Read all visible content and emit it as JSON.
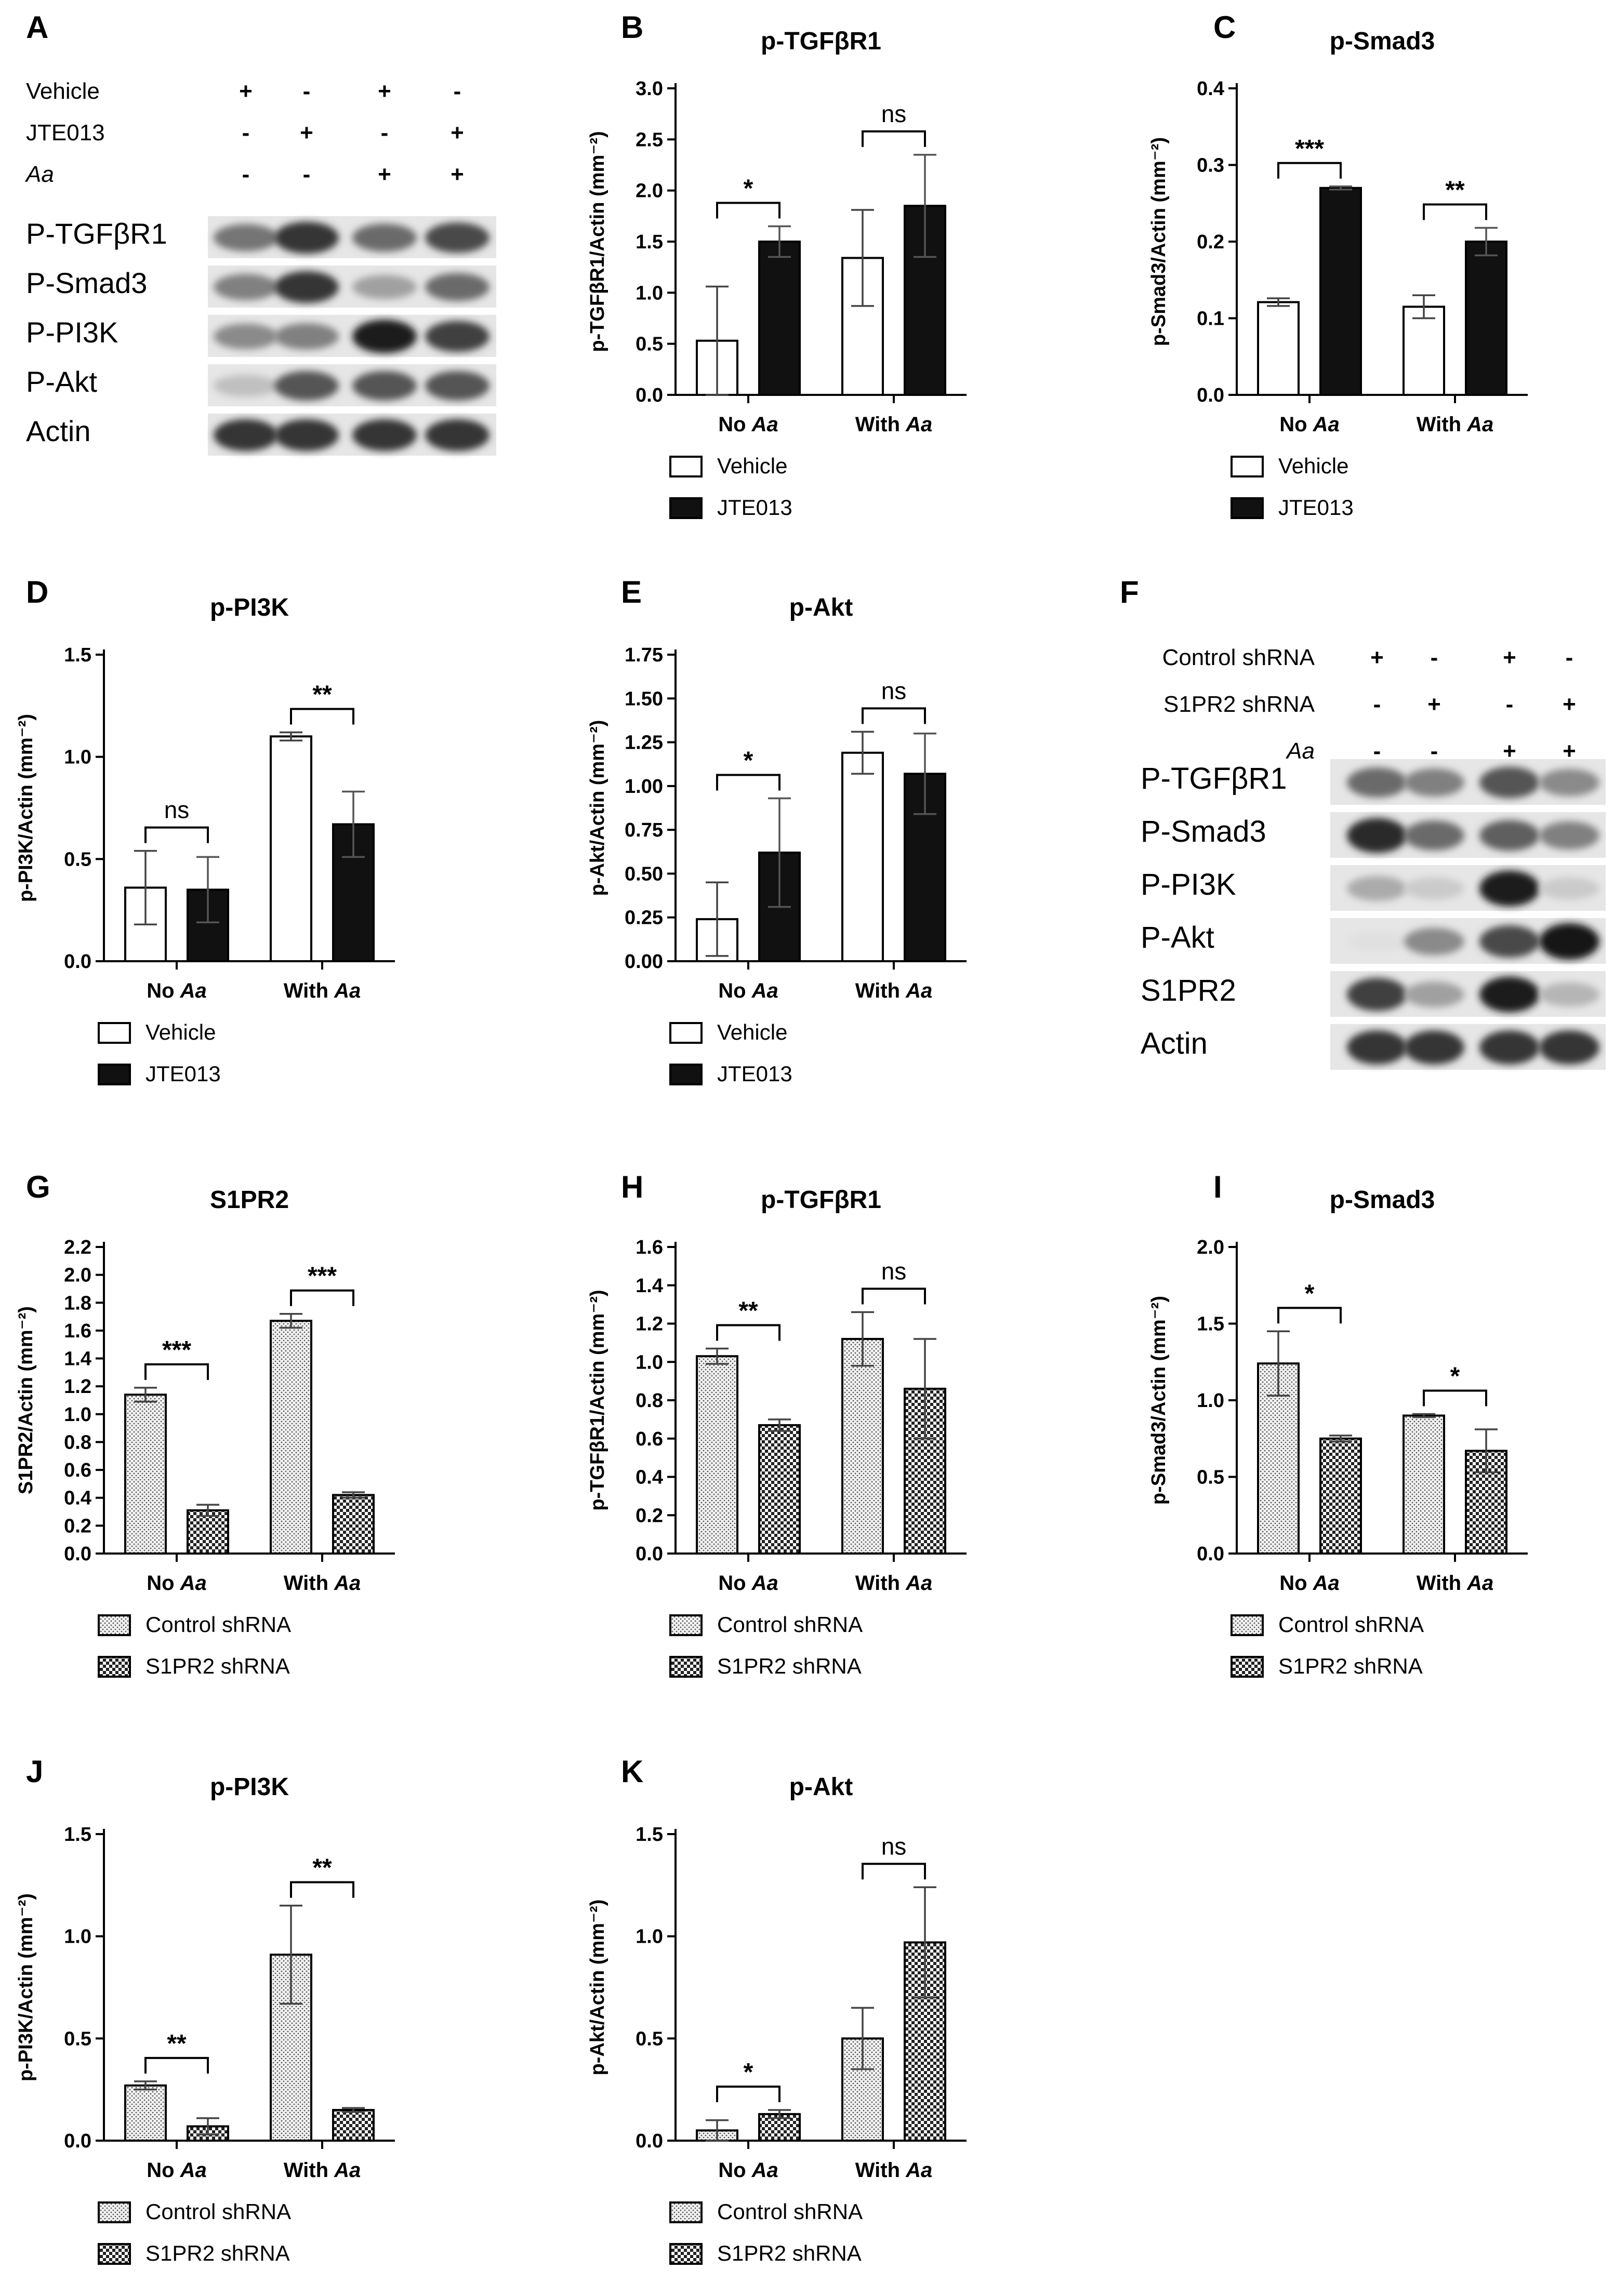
{
  "panel_letters": [
    "A",
    "B",
    "C",
    "D",
    "E",
    "F",
    "G",
    "H",
    "I",
    "J",
    "K"
  ],
  "blot_a": {
    "conditions": [
      {
        "label": "Vehicle",
        "italic": false,
        "signs": [
          "+",
          "-",
          "+",
          "-"
        ]
      },
      {
        "label": "JTE013",
        "italic": false,
        "signs": [
          "-",
          "+",
          "-",
          "+"
        ]
      },
      {
        "label": "Aa",
        "italic": true,
        "signs": [
          "-",
          "-",
          "+",
          "+"
        ]
      }
    ],
    "bands": [
      {
        "label": "P-TGFβR1",
        "intensity": [
          0.55,
          0.85,
          0.6,
          0.75
        ]
      },
      {
        "label": "P-Smad3",
        "intensity": [
          0.5,
          0.85,
          0.35,
          0.6
        ]
      },
      {
        "label": "P-PI3K",
        "intensity": [
          0.45,
          0.5,
          0.95,
          0.8
        ]
      },
      {
        "label": "P-Akt",
        "intensity": [
          0.2,
          0.7,
          0.7,
          0.7
        ]
      },
      {
        "label": "Actin",
        "intensity": [
          0.85,
          0.85,
          0.85,
          0.85
        ]
      }
    ]
  },
  "blot_f": {
    "conditions": [
      {
        "label": "Control shRNA",
        "italic": false,
        "signs": [
          "+",
          "-",
          "+",
          "-"
        ]
      },
      {
        "label": "S1PR2 shRNA",
        "italic": false,
        "signs": [
          "-",
          "+",
          "-",
          "+"
        ]
      },
      {
        "label": "Aa",
        "italic": true,
        "signs": [
          "-",
          "-",
          "+",
          "+"
        ]
      }
    ],
    "bands": [
      {
        "label": "P-TGFβR1",
        "intensity": [
          0.6,
          0.5,
          0.7,
          0.45
        ]
      },
      {
        "label": "P-Smad3",
        "intensity": [
          0.9,
          0.6,
          0.65,
          0.5
        ]
      },
      {
        "label": "P-PI3K",
        "intensity": [
          0.3,
          0.15,
          0.95,
          0.15
        ]
      },
      {
        "label": "P-Akt",
        "intensity": [
          0.05,
          0.45,
          0.75,
          1.0
        ]
      },
      {
        "label": "S1PR2",
        "intensity": [
          0.8,
          0.35,
          0.95,
          0.25
        ]
      },
      {
        "label": "Actin",
        "intensity": [
          0.85,
          0.85,
          0.85,
          0.85
        ]
      }
    ]
  },
  "chart_data": [
    {
      "id": "B",
      "type": "bar",
      "title": "p-TGFβR1",
      "ylabel": "p-TGFβR1/Actin (mm⁻²)",
      "ylim": [
        0,
        3.0
      ],
      "yticks": [
        "0.0",
        "0.5",
        "1.0",
        "1.5",
        "2.0",
        "2.5",
        "3.0"
      ],
      "categories": [
        "No Aa",
        "With Aa"
      ],
      "series": [
        {
          "name": "Vehicle",
          "values": [
            0.53,
            1.34
          ],
          "errors": [
            0.53,
            0.47
          ]
        },
        {
          "name": "JTE013",
          "values": [
            1.5,
            1.85
          ],
          "errors": [
            0.15,
            0.5
          ]
        }
      ],
      "significance": [
        "*",
        "ns"
      ],
      "fill": "plain"
    },
    {
      "id": "C",
      "type": "bar",
      "title": "p-Smad3",
      "ylabel": "p-Smad3/Actin (mm⁻²)",
      "ylim": [
        0,
        0.4
      ],
      "yticks": [
        "0.0",
        "0.1",
        "0.2",
        "0.3",
        "0.4"
      ],
      "categories": [
        "No Aa",
        "With Aa"
      ],
      "series": [
        {
          "name": "Vehicle",
          "values": [
            0.121,
            0.115
          ],
          "errors": [
            0.005,
            0.015
          ]
        },
        {
          "name": "JTE013",
          "values": [
            0.27,
            0.2
          ],
          "errors": [
            0.002,
            0.018
          ]
        }
      ],
      "significance": [
        "***",
        "**"
      ],
      "fill": "plain"
    },
    {
      "id": "D",
      "type": "bar",
      "title": "p-PI3K",
      "ylabel": "p-PI3K/Actin (mm⁻²)",
      "ylim": [
        0,
        1.5
      ],
      "yticks": [
        "0.0",
        "0.5",
        "1.0",
        "1.5"
      ],
      "categories": [
        "No Aa",
        "With Aa"
      ],
      "series": [
        {
          "name": "Vehicle",
          "values": [
            0.36,
            1.1
          ],
          "errors": [
            0.18,
            0.02
          ]
        },
        {
          "name": "JTE013",
          "values": [
            0.35,
            0.67
          ],
          "errors": [
            0.16,
            0.16
          ]
        }
      ],
      "significance": [
        "ns",
        "**"
      ],
      "fill": "plain"
    },
    {
      "id": "E",
      "type": "bar",
      "title": "p-Akt",
      "ylabel": "p-Akt/Actin (mm⁻²)",
      "ylim": [
        0,
        1.75
      ],
      "yticks": [
        "0.00",
        "0.25",
        "0.50",
        "0.75",
        "1.00",
        "1.25",
        "1.50",
        "1.75"
      ],
      "categories": [
        "No Aa",
        "With Aa"
      ],
      "series": [
        {
          "name": "Vehicle",
          "values": [
            0.24,
            1.19
          ],
          "errors": [
            0.21,
            0.12
          ]
        },
        {
          "name": "JTE013",
          "values": [
            0.62,
            1.07
          ],
          "errors": [
            0.31,
            0.23
          ]
        }
      ],
      "significance": [
        "*",
        "ns"
      ],
      "fill": "plain"
    },
    {
      "id": "G",
      "type": "bar",
      "title": "S1PR2",
      "ylabel": "S1PR2/Actin (mm⁻²)",
      "ylim": [
        0,
        2.2
      ],
      "yticks": [
        "0.0",
        "0.2",
        "0.4",
        "0.6",
        "0.8",
        "1.0",
        "1.2",
        "1.4",
        "1.6",
        "1.8",
        "2.0",
        "2.2"
      ],
      "categories": [
        "No Aa",
        "With Aa"
      ],
      "series": [
        {
          "name": "Control shRNA",
          "values": [
            1.14,
            1.67
          ],
          "errors": [
            0.05,
            0.05
          ]
        },
        {
          "name": "S1PR2 shRNA",
          "values": [
            0.31,
            0.42
          ],
          "errors": [
            0.04,
            0.02
          ]
        }
      ],
      "significance": [
        "***",
        "***"
      ],
      "fill": "pattern"
    },
    {
      "id": "H",
      "type": "bar",
      "title": "p-TGFβR1",
      "ylabel": "p-TGFβR1/Actin (mm⁻²)",
      "ylim": [
        0,
        1.6
      ],
      "yticks": [
        "0.0",
        "0.2",
        "0.4",
        "0.6",
        "0.8",
        "1.0",
        "1.2",
        "1.4",
        "1.6"
      ],
      "categories": [
        "No Aa",
        "With Aa"
      ],
      "series": [
        {
          "name": "Control shRNA",
          "values": [
            1.03,
            1.12
          ],
          "errors": [
            0.04,
            0.14
          ]
        },
        {
          "name": "S1PR2 shRNA",
          "values": [
            0.67,
            0.86
          ],
          "errors": [
            0.03,
            0.26
          ]
        }
      ],
      "significance": [
        "**",
        "ns"
      ],
      "fill": "pattern"
    },
    {
      "id": "I",
      "type": "bar",
      "title": "p-Smad3",
      "ylabel": "p-Smad3/Actin (mm⁻²)",
      "ylim": [
        0,
        2.0
      ],
      "yticks": [
        "0.0",
        "0.5",
        "1.0",
        "1.5",
        "2.0"
      ],
      "categories": [
        "No Aa",
        "With Aa"
      ],
      "series": [
        {
          "name": "Control shRNA",
          "values": [
            1.24,
            0.9
          ],
          "errors": [
            0.21,
            0.01
          ]
        },
        {
          "name": "S1PR2 shRNA",
          "values": [
            0.75,
            0.67
          ],
          "errors": [
            0.02,
            0.14
          ]
        }
      ],
      "significance": [
        "*",
        "*"
      ],
      "fill": "pattern"
    },
    {
      "id": "J",
      "type": "bar",
      "title": "p-PI3K",
      "ylabel": "p-PI3K/Actin (mm⁻²)",
      "ylim": [
        0,
        1.5
      ],
      "yticks": [
        "0.0",
        "0.5",
        "1.0",
        "1.5"
      ],
      "categories": [
        "No Aa",
        "With Aa"
      ],
      "series": [
        {
          "name": "Control shRNA",
          "values": [
            0.27,
            0.91
          ],
          "errors": [
            0.02,
            0.24
          ]
        },
        {
          "name": "S1PR2 shRNA",
          "values": [
            0.07,
            0.15
          ],
          "errors": [
            0.04,
            0.01
          ]
        }
      ],
      "significance": [
        "**",
        "**"
      ],
      "fill": "pattern"
    },
    {
      "id": "K",
      "type": "bar",
      "title": "p-Akt",
      "ylabel": "p-Akt/Actin (mm⁻²)",
      "ylim": [
        0,
        1.5
      ],
      "yticks": [
        "0.0",
        "0.5",
        "1.0",
        "1.5"
      ],
      "categories": [
        "No Aa",
        "With Aa"
      ],
      "series": [
        {
          "name": "Control shRNA",
          "values": [
            0.05,
            0.5
          ],
          "errors": [
            0.05,
            0.15
          ]
        },
        {
          "name": "S1PR2 shRNA",
          "values": [
            0.13,
            0.97
          ],
          "errors": [
            0.02,
            0.27
          ]
        }
      ],
      "significance": [
        "*",
        "ns"
      ],
      "fill": "pattern"
    }
  ]
}
